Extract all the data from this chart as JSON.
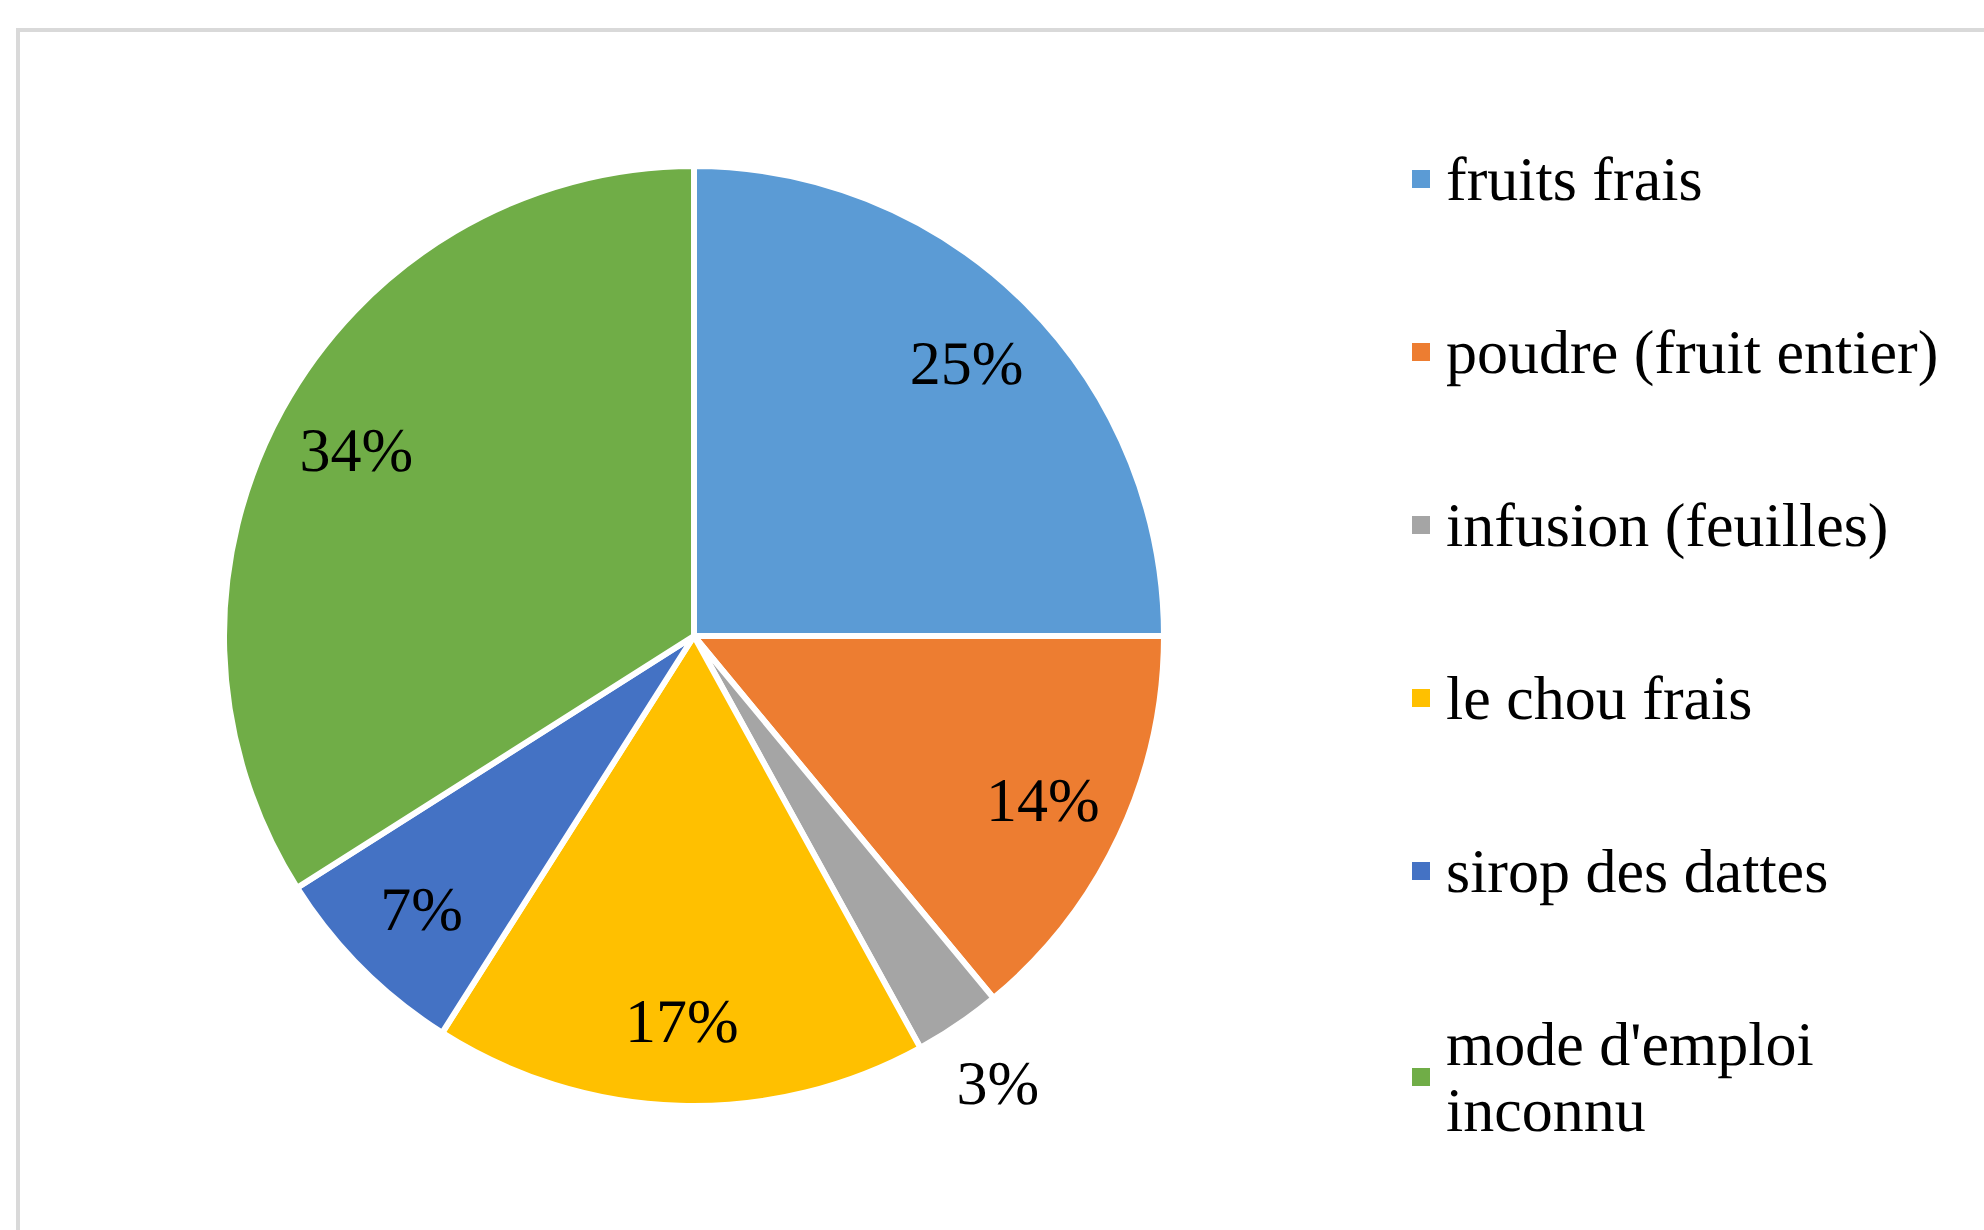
{
  "chart_data": {
    "type": "pie",
    "categories": [
      "fruits frais",
      "poudre (fruit entier)",
      "infusion (feuilles)",
      "le chou frais",
      "sirop des dattes",
      "mode d'emploi inconnu"
    ],
    "values": [
      25,
      14,
      3,
      17,
      7,
      34
    ],
    "colors": [
      "#5b9bd5",
      "#ed7d31",
      "#a5a5a5",
      "#ffc000",
      "#4472c4",
      "#70ad47"
    ],
    "value_labels": [
      "25%",
      "14%",
      "3%",
      "17%",
      "7%",
      "34%"
    ],
    "legend": "right"
  }
}
